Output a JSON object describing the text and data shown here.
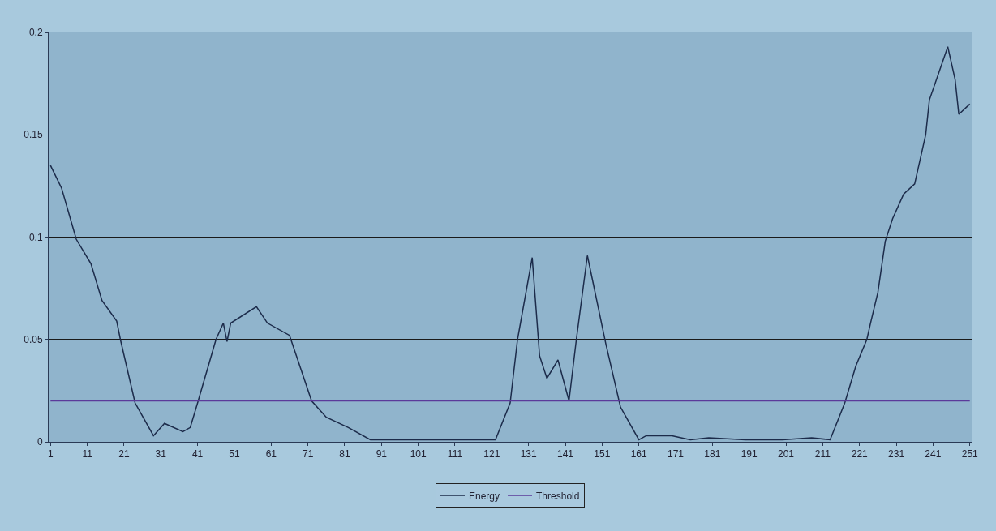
{
  "chart_data": {
    "type": "line",
    "xlim": [
      0.5,
      251.5
    ],
    "xticks": [
      1,
      11,
      21,
      31,
      41,
      51,
      61,
      71,
      81,
      91,
      101,
      111,
      121,
      131,
      141,
      151,
      161,
      171,
      181,
      191,
      201,
      211,
      221,
      231,
      241,
      251
    ],
    "ylim": [
      0,
      0.2
    ],
    "yticks": [
      0,
      0.05,
      {
        "value": 0.1,
        "label": "0.1"
      },
      0.15,
      0.2
    ],
    "grid": "y",
    "legend": "bottom",
    "marker": "none",
    "line_style": "solid",
    "series": [
      {
        "name": "Energy",
        "color": "#1c2b4a",
        "x": [
          1,
          4,
          8,
          12,
          15,
          19,
          20,
          24,
          29,
          32,
          37,
          39,
          41,
          46,
          48,
          49,
          50,
          57,
          60,
          66,
          72,
          76,
          82,
          88,
          95,
          105,
          115,
          122,
          126,
          128,
          132,
          134,
          136,
          139,
          142,
          144,
          147,
          152,
          156,
          161,
          163,
          170,
          175,
          180,
          190,
          200,
          208,
          213,
          217,
          220,
          223,
          224,
          226,
          228,
          230,
          233,
          236,
          239,
          240,
          245,
          247,
          248,
          251
        ],
        "values": [
          0.135,
          0.124,
          0.099,
          0.087,
          0.069,
          0.059,
          0.05,
          0.019,
          0.003,
          0.009,
          0.005,
          0.007,
          0.019,
          0.05,
          0.058,
          0.049,
          0.058,
          0.066,
          0.058,
          0.052,
          0.02,
          0.012,
          0.007,
          0.001,
          0.001,
          0.001,
          0.001,
          0.001,
          0.019,
          0.05,
          0.09,
          0.042,
          0.031,
          0.04,
          0.02,
          0.05,
          0.091,
          0.048,
          0.017,
          0.001,
          0.003,
          0.003,
          0.001,
          0.002,
          0.001,
          0.001,
          0.002,
          0.001,
          0.019,
          0.037,
          0.05,
          0.058,
          0.073,
          0.098,
          0.109,
          0.121,
          0.126,
          0.15,
          0.167,
          0.193,
          0.177,
          0.16,
          0.165
        ]
      },
      {
        "name": "Threshold",
        "color": "#5b3a9a",
        "x": [
          1,
          251
        ],
        "values": [
          0.02,
          0.02
        ]
      }
    ]
  }
}
